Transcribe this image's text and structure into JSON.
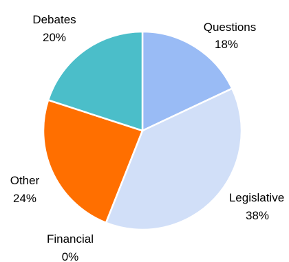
{
  "chart_data": {
    "type": "pie",
    "title": "",
    "start_angle_deg": 0,
    "direction": "clockwise",
    "slices": [
      {
        "label": "Questions",
        "value": 18,
        "value_label": "18%",
        "color": "#99BBF5"
      },
      {
        "label": "Legislative",
        "value": 38,
        "value_label": "38%",
        "color": "#D1DFF8"
      },
      {
        "label": "Financial",
        "value": 0,
        "value_label": "0%",
        "color": "#7F7F7F"
      },
      {
        "label": "Other",
        "value": 24,
        "value_label": "24%",
        "color": "#FF6F00"
      },
      {
        "label": "Debates",
        "value": 20,
        "value_label": "20%",
        "color": "#4BBEC9"
      }
    ]
  }
}
